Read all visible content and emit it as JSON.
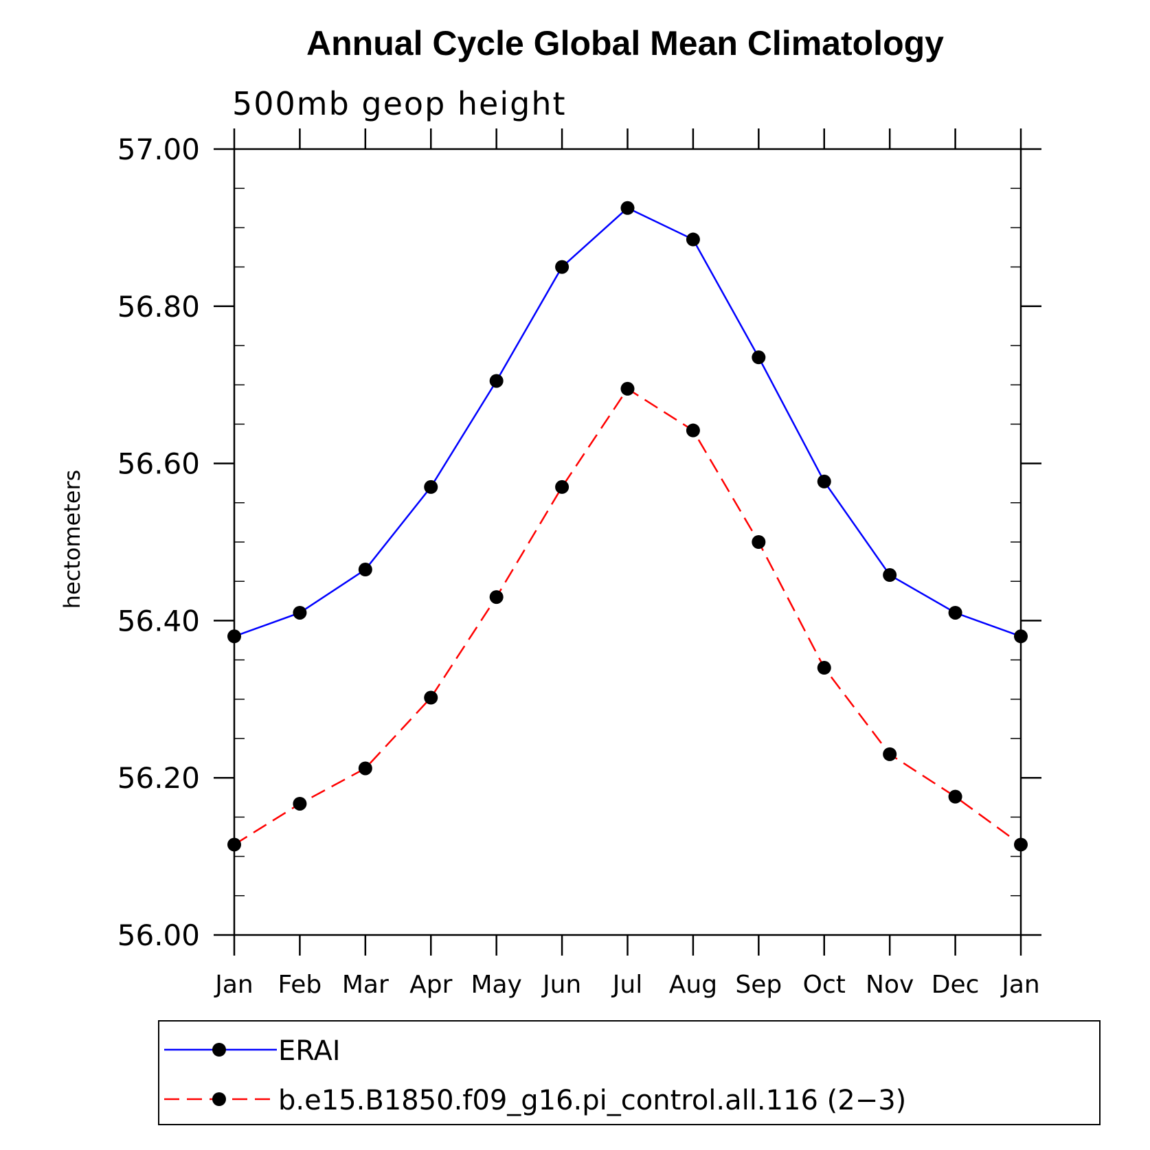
{
  "chart_data": {
    "type": "line",
    "title": "Annual Cycle Global Mean Climatology",
    "subtitle": "500mb geop height",
    "ylabel": "hectometers",
    "xlabel": "",
    "categories": [
      "Jan",
      "Feb",
      "Mar",
      "Apr",
      "May",
      "Jun",
      "Jul",
      "Aug",
      "Sep",
      "Oct",
      "Nov",
      "Dec",
      "Jan"
    ],
    "ylim": [
      56.0,
      57.0
    ],
    "yticks": [
      "56.00",
      "56.20",
      "56.40",
      "56.60",
      "56.80",
      "57.00"
    ],
    "series": [
      {
        "name": "ERAI",
        "color": "#0000ff",
        "line_style": "solid",
        "values": [
          56.38,
          56.41,
          56.465,
          56.57,
          56.705,
          56.85,
          56.925,
          56.885,
          56.735,
          56.577,
          56.458,
          56.41,
          56.38
        ]
      },
      {
        "name": "b.e15.B1850.f09_g16.pi_control.all.116 (2−3)",
        "color": "#ff0000",
        "line_style": "dashed",
        "values": [
          56.115,
          56.167,
          56.212,
          56.302,
          56.43,
          56.57,
          56.695,
          56.642,
          56.5,
          56.34,
          56.23,
          56.176,
          56.115
        ]
      }
    ],
    "legend_position": "bottom",
    "grid": false
  }
}
